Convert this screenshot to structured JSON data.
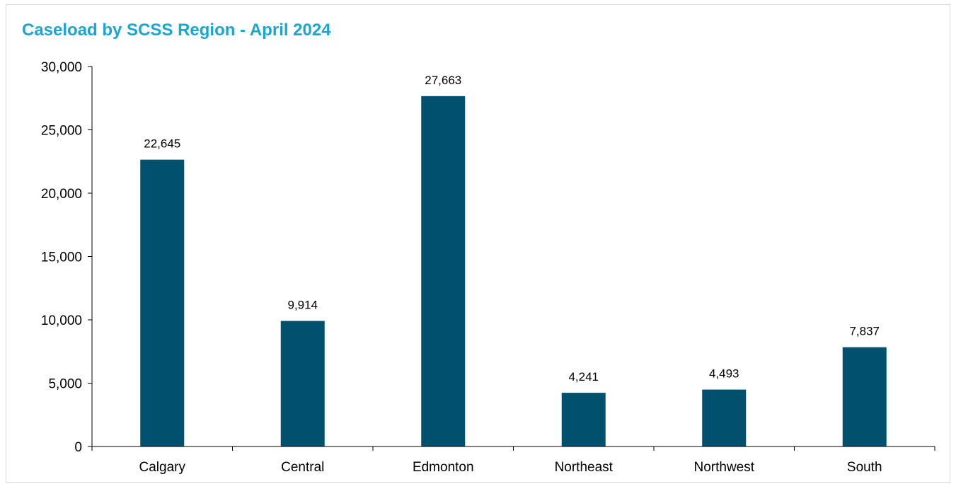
{
  "chart_data": {
    "type": "bar",
    "title": "Caseload by SCSS Region - April 2024",
    "xlabel": "",
    "ylabel": "",
    "categories": [
      "Calgary",
      "Central",
      "Edmonton",
      "Northeast",
      "Northwest",
      "South"
    ],
    "values": [
      22645,
      9914,
      27663,
      4241,
      4493,
      7837
    ],
    "data_labels": [
      "22,645",
      "9,914",
      "27,663",
      "4,241",
      "4,493",
      "7,837"
    ],
    "ylim": [
      0,
      30000
    ],
    "yticks": [
      0,
      5000,
      10000,
      15000,
      20000,
      25000,
      30000
    ],
    "ytick_labels": [
      "0",
      "5,000",
      "10,000",
      "15,000",
      "20,000",
      "25,000",
      "30,000"
    ],
    "grid": false,
    "legend": "none",
    "bar_color": "#00506e",
    "title_color": "#1aa6d4"
  }
}
